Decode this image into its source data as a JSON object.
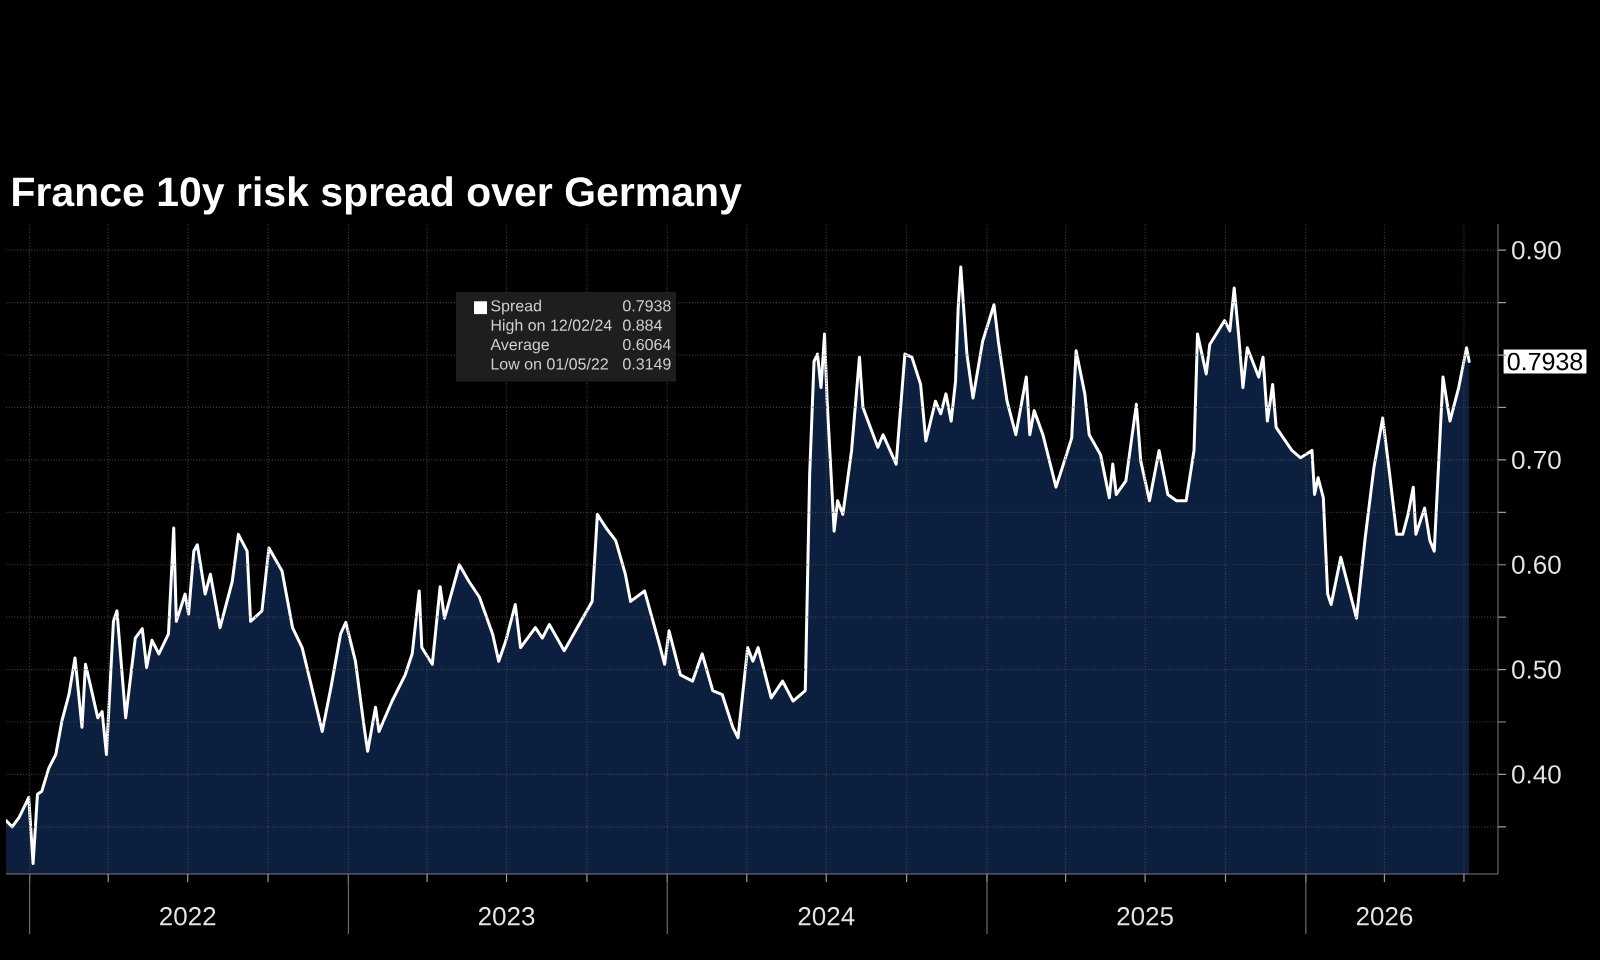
{
  "chart_data": {
    "type": "area",
    "title": "France 10y risk spread over Germany",
    "x": [
      "2021-12-05",
      "2021-12-12",
      "2021-12-20",
      "2021-12-27",
      "2021-12-31",
      "2022-01-05",
      "2022-01-10",
      "2022-01-15",
      "2022-01-23",
      "2022-01-31",
      "2022-02-07",
      "2022-02-15",
      "2022-02-22",
      "2022-03-02",
      "2022-03-06",
      "2022-03-13",
      "2022-03-20",
      "2022-03-25",
      "2022-03-30",
      "2022-04-07",
      "2022-04-11",
      "2022-04-21",
      "2022-05-02",
      "2022-05-10",
      "2022-05-15",
      "2022-05-21",
      "2022-05-29",
      "2022-06-09",
      "2022-06-15",
      "2022-06-18",
      "2022-06-28",
      "2022-07-02",
      "2022-07-08",
      "2022-07-12",
      "2022-07-21",
      "2022-07-27",
      "2022-08-07",
      "2022-08-21",
      "2022-08-28",
      "2022-09-07",
      "2022-09-11",
      "2022-09-24",
      "2022-10-02",
      "2022-10-17",
      "2022-10-29",
      "2022-11-09",
      "2022-11-20",
      "2022-12-02",
      "2022-12-12",
      "2022-12-23",
      "2022-12-29",
      "2023-01-09",
      "2023-01-19",
      "2023-01-23",
      "2023-02-01",
      "2023-02-05",
      "2023-02-20",
      "2023-03-07",
      "2023-03-15",
      "2023-03-23",
      "2023-03-26",
      "2023-04-07",
      "2023-04-16",
      "2023-04-21",
      "2023-05-08",
      "2023-05-19",
      "2023-05-31",
      "2023-06-15",
      "2023-06-22",
      "2023-06-30",
      "2023-07-11",
      "2023-07-17",
      "2023-08-03",
      "2023-08-11",
      "2023-08-19",
      "2023-09-05",
      "2023-09-22",
      "2023-10-07",
      "2023-10-13",
      "2023-10-23",
      "2023-11-03",
      "2023-11-14",
      "2023-11-20",
      "2023-12-06",
      "2023-12-23",
      "2023-12-29",
      "2024-01-03",
      "2024-01-16",
      "2024-01-30",
      "2024-02-10",
      "2024-02-22",
      "2024-03-04",
      "2024-03-16",
      "2024-03-22",
      "2024-04-02",
      "2024-04-08",
      "2024-04-14",
      "2024-04-29",
      "2024-05-12",
      "2024-05-24",
      "2024-06-07",
      "2024-06-12",
      "2024-06-17",
      "2024-06-21",
      "2024-06-25",
      "2024-06-29",
      "2024-07-02",
      "2024-07-10",
      "2024-07-14",
      "2024-07-20",
      "2024-07-30",
      "2024-08-08",
      "2024-08-12",
      "2024-08-29",
      "2024-09-04",
      "2024-09-19",
      "2024-09-29",
      "2024-10-07",
      "2024-10-17",
      "2024-10-23",
      "2024-11-03",
      "2024-11-09",
      "2024-11-15",
      "2024-11-21",
      "2024-11-26",
      "2024-11-29",
      "2024-12-02",
      "2024-12-09",
      "2024-12-16",
      "2024-12-27",
      "2025-01-09",
      "2025-01-14",
      "2025-01-24",
      "2025-02-03",
      "2025-02-15",
      "2025-02-19",
      "2025-02-24",
      "2025-03-06",
      "2025-03-21",
      "2025-04-02",
      "2025-04-08",
      "2025-04-13",
      "2025-04-23",
      "2025-04-28",
      "2025-05-11",
      "2025-05-21",
      "2025-05-25",
      "2025-05-29",
      "2025-06-09",
      "2025-06-21",
      "2025-06-26",
      "2025-07-06",
      "2025-07-17",
      "2025-07-27",
      "2025-08-06",
      "2025-08-17",
      "2025-08-26",
      "2025-08-30",
      "2025-09-09",
      "2025-09-13",
      "2025-09-30",
      "2025-10-06",
      "2025-10-11",
      "2025-10-16",
      "2025-10-21",
      "2025-10-26",
      "2025-11-08",
      "2025-11-13",
      "2025-11-18",
      "2025-11-24",
      "2025-11-28",
      "2025-12-16",
      "2025-12-26",
      "2026-01-08",
      "2026-01-11",
      "2026-01-15",
      "2026-01-21",
      "2026-01-26",
      "2026-01-30",
      "2026-02-10",
      "2026-02-24",
      "2026-02-28",
      "2026-03-10",
      "2026-03-20",
      "2026-03-30",
      "2026-04-07",
      "2026-04-15",
      "2026-04-22",
      "2026-04-28",
      "2026-05-04",
      "2026-05-07",
      "2026-05-17",
      "2026-05-23",
      "2026-05-28",
      "2026-06-07",
      "2026-06-15",
      "2026-06-25",
      "2026-07-04",
      "2026-07-07"
    ],
    "series": [
      {
        "name": "Spread",
        "color": "#ffffff",
        "values": [
          0.356,
          0.35,
          0.359,
          0.371,
          0.378,
          0.3149,
          0.381,
          0.384,
          0.406,
          0.419,
          0.451,
          0.476,
          0.511,
          0.445,
          0.505,
          0.48,
          0.454,
          0.46,
          0.419,
          0.546,
          0.556,
          0.454,
          0.53,
          0.539,
          0.502,
          0.528,
          0.515,
          0.534,
          0.635,
          0.546,
          0.572,
          0.553,
          0.613,
          0.619,
          0.572,
          0.591,
          0.54,
          0.584,
          0.629,
          0.613,
          0.546,
          0.556,
          0.616,
          0.594,
          0.54,
          0.521,
          0.483,
          0.441,
          0.483,
          0.534,
          0.545,
          0.508,
          0.445,
          0.422,
          0.464,
          0.441,
          0.47,
          0.495,
          0.515,
          0.575,
          0.521,
          0.505,
          0.579,
          0.549,
          0.6,
          0.584,
          0.569,
          0.534,
          0.508,
          0.527,
          0.562,
          0.521,
          0.54,
          0.53,
          0.543,
          0.518,
          0.543,
          0.565,
          0.648,
          0.635,
          0.623,
          0.591,
          0.565,
          0.575,
          0.524,
          0.505,
          0.537,
          0.495,
          0.489,
          0.515,
          0.48,
          0.476,
          0.445,
          0.435,
          0.521,
          0.508,
          0.521,
          0.473,
          0.489,
          0.47,
          0.48,
          0.686,
          0.794,
          0.801,
          0.769,
          0.82,
          0.756,
          0.632,
          0.661,
          0.648,
          0.709,
          0.798,
          0.75,
          0.712,
          0.724,
          0.696,
          0.801,
          0.798,
          0.772,
          0.718,
          0.756,
          0.744,
          0.763,
          0.737,
          0.775,
          0.845,
          0.884,
          0.801,
          0.759,
          0.813,
          0.848,
          0.813,
          0.756,
          0.724,
          0.779,
          0.724,
          0.747,
          0.724,
          0.674,
          0.705,
          0.721,
          0.804,
          0.763,
          0.724,
          0.705,
          0.664,
          0.696,
          0.667,
          0.68,
          0.753,
          0.699,
          0.661,
          0.709,
          0.667,
          0.661,
          0.661,
          0.709,
          0.82,
          0.782,
          0.81,
          0.833,
          0.823,
          0.864,
          0.82,
          0.769,
          0.807,
          0.779,
          0.798,
          0.737,
          0.772,
          0.731,
          0.709,
          0.702,
          0.709,
          0.667,
          0.683,
          0.664,
          0.572,
          0.562,
          0.607,
          0.562,
          0.549,
          0.626,
          0.693,
          0.74,
          0.686,
          0.629,
          0.629,
          0.648,
          0.674,
          0.629,
          0.654,
          0.623,
          0.613,
          0.779,
          0.737,
          0.769,
          0.807,
          0.7938
        ]
      }
    ],
    "xlim": [
      "2021-12-05",
      "2026-08-09"
    ],
    "xticks": [
      {
        "value": "2022-01-01",
        "label": null
      },
      {
        "value": "2022-04-01",
        "label": null
      },
      {
        "value": "2022-07-01",
        "label": "2022"
      },
      {
        "value": "2022-10-01",
        "label": null
      },
      {
        "value": "2023-01-01",
        "label": null
      },
      {
        "value": "2023-04-01",
        "label": null
      },
      {
        "value": "2023-07-01",
        "label": "2023"
      },
      {
        "value": "2023-10-01",
        "label": null
      },
      {
        "value": "2024-01-01",
        "label": null
      },
      {
        "value": "2024-04-01",
        "label": null
      },
      {
        "value": "2024-07-01",
        "label": "2024"
      },
      {
        "value": "2024-10-01",
        "label": null
      },
      {
        "value": "2025-01-01",
        "label": null
      },
      {
        "value": "2025-04-01",
        "label": null
      },
      {
        "value": "2025-07-01",
        "label": "2025"
      },
      {
        "value": "2025-10-01",
        "label": null
      },
      {
        "value": "2026-01-01",
        "label": null
      },
      {
        "value": "2026-04-01",
        "label": "2026"
      },
      {
        "value": "2026-07-01",
        "label": null
      }
    ],
    "ylim": [
      0.305,
      0.925
    ],
    "yticks": [
      {
        "value": 0.35,
        "label": null
      },
      {
        "value": 0.4,
        "label": "0.40"
      },
      {
        "value": 0.45,
        "label": null
      },
      {
        "value": 0.5,
        "label": "0.50"
      },
      {
        "value": 0.55,
        "label": null
      },
      {
        "value": 0.6,
        "label": "0.60"
      },
      {
        "value": 0.65,
        "label": null
      },
      {
        "value": 0.7,
        "label": "0.70"
      },
      {
        "value": 0.75,
        "label": null
      },
      {
        "value": 0.8,
        "label": null
      },
      {
        "value": 0.85,
        "label": null
      },
      {
        "value": 0.9,
        "label": "0.90"
      }
    ],
    "grid": true,
    "legend": "top left",
    "annotations": [
      "0.7938",
      "High on 12/02/24",
      "0.884",
      "Average",
      "0.6064",
      "Low on 01/05/22",
      "0.3149",
      {
        "text": "0.7938",
        "x": "2026-07-07",
        "y": 0.7938
      }
    ]
  }
}
